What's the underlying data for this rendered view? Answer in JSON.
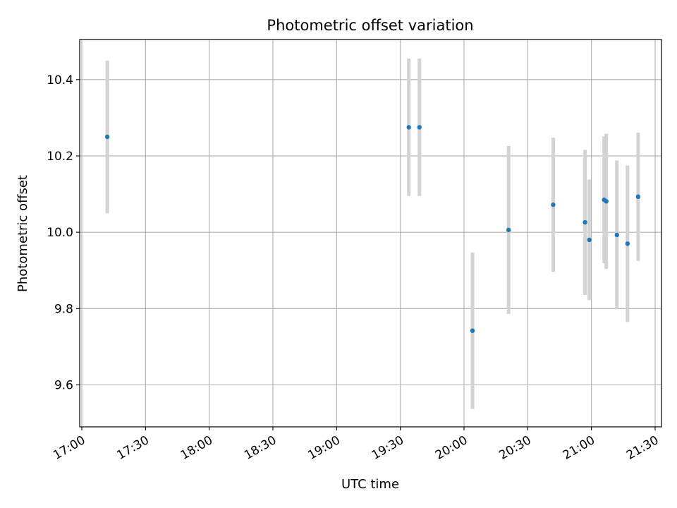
{
  "chart_data": {
    "type": "scatter",
    "title": "Photometric offset variation",
    "xlabel": "UTC time",
    "ylabel": "Photometric offset",
    "xlim": [
      "16:59",
      "21:33"
    ],
    "ylim": [
      9.49,
      10.505
    ],
    "grid": true,
    "x_ticks": [
      "17:00",
      "17:30",
      "18:00",
      "18:30",
      "19:00",
      "19:30",
      "20:00",
      "20:30",
      "21:00",
      "21:30"
    ],
    "y_ticks": [
      9.6,
      9.8,
      10.0,
      10.2,
      10.4
    ],
    "y_tick_labels": [
      "9.6",
      "9.8",
      "10.0",
      "10.2",
      "10.4"
    ],
    "marker_color": "#1f77b4",
    "errorbar_color": "#d3d3d3",
    "points": [
      {
        "time": "17:12",
        "y": 10.25,
        "yerr": 0.2
      },
      {
        "time": "19:34",
        "y": 10.275,
        "yerr": 0.18
      },
      {
        "time": "19:39",
        "y": 10.275,
        "yerr": 0.18
      },
      {
        "time": "20:04",
        "y": 9.742,
        "yerr": 0.205
      },
      {
        "time": "20:21",
        "y": 10.006,
        "yerr": 0.22
      },
      {
        "time": "20:42",
        "y": 10.072,
        "yerr": 0.176
      },
      {
        "time": "20:57",
        "y": 10.026,
        "yerr": 0.19
      },
      {
        "time": "20:59",
        "y": 9.98,
        "yerr": 0.158
      },
      {
        "time": "21:06",
        "y": 10.085,
        "yerr": 0.166
      },
      {
        "time": "21:07",
        "y": 10.081,
        "yerr": 0.177
      },
      {
        "time": "21:12",
        "y": 9.993,
        "yerr": 0.195
      },
      {
        "time": "21:17",
        "y": 9.97,
        "yerr": 0.205
      },
      {
        "time": "21:22",
        "y": 10.093,
        "yerr": 0.168
      }
    ]
  }
}
